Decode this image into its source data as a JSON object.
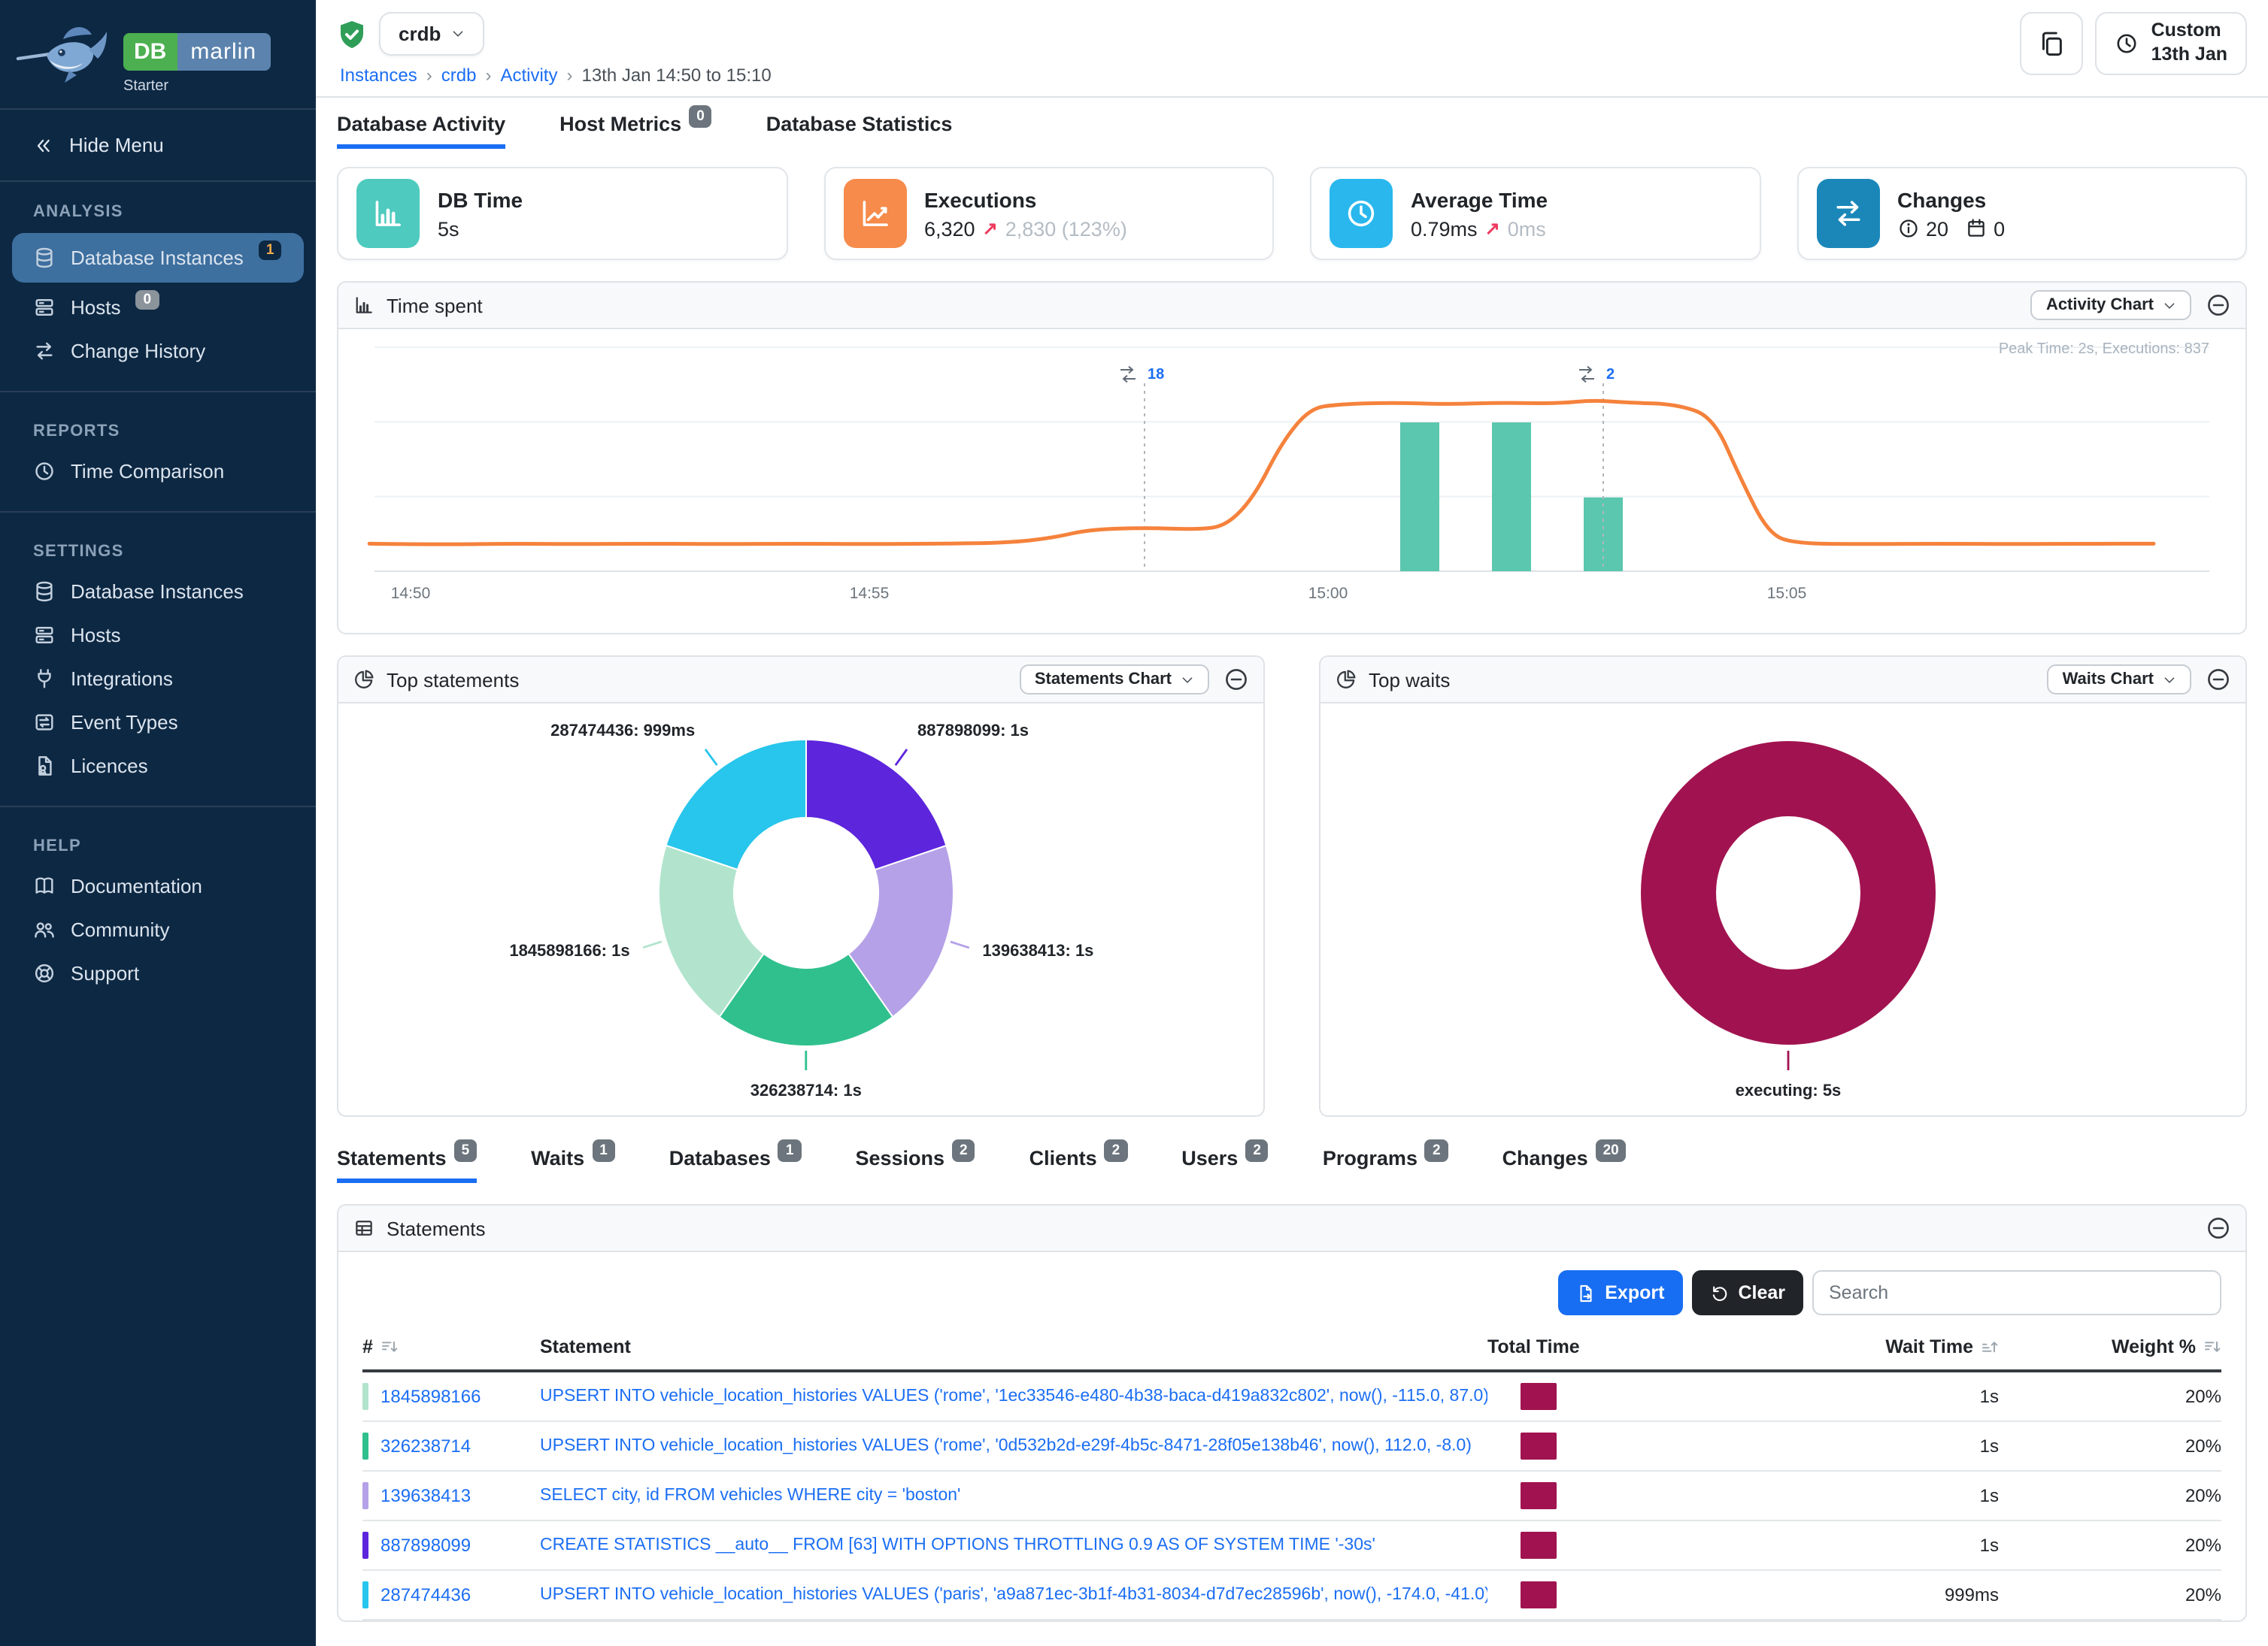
{
  "brand": {
    "db": "DB",
    "marlin": "marlin",
    "edition": "Starter"
  },
  "sidebar": {
    "hide_menu": "Hide Menu",
    "sections": [
      {
        "title": "ANALYSIS",
        "items": [
          {
            "label": "Database Instances",
            "icon": "database",
            "active": true,
            "badge": "1",
            "badge_style": "navy"
          },
          {
            "label": "Hosts",
            "icon": "server",
            "badge": "0",
            "badge_style": "gray"
          },
          {
            "label": "Change History",
            "icon": "swap"
          }
        ]
      },
      {
        "title": "REPORTS",
        "items": [
          {
            "label": "Time Comparison",
            "icon": "clock"
          }
        ]
      },
      {
        "title": "SETTINGS",
        "items": [
          {
            "label": "Database Instances",
            "icon": "database"
          },
          {
            "label": "Hosts",
            "icon": "server"
          },
          {
            "label": "Integrations",
            "icon": "plug"
          },
          {
            "label": "Event Types",
            "icon": "events"
          },
          {
            "label": "Licences",
            "icon": "licence"
          }
        ]
      },
      {
        "title": "HELP",
        "items": [
          {
            "label": "Documentation",
            "icon": "book"
          },
          {
            "label": "Community",
            "icon": "people"
          },
          {
            "label": "Support",
            "icon": "support"
          }
        ]
      }
    ]
  },
  "header": {
    "instance": "crdb",
    "breadcrumb": [
      {
        "label": "Instances",
        "link": true
      },
      {
        "label": "crdb",
        "link": true
      },
      {
        "label": "Activity",
        "link": true
      },
      {
        "label": "13th Jan 14:50 to 15:10",
        "link": false
      }
    ],
    "time_button": {
      "line1": "Custom",
      "line2": "13th Jan"
    }
  },
  "top_tabs": [
    {
      "label": "Database Activity",
      "active": true
    },
    {
      "label": "Host Metrics",
      "badge": "0"
    },
    {
      "label": "Database Statistics"
    }
  ],
  "cards": [
    {
      "title": "DB Time",
      "icon": "chart-bars",
      "color": "#4ecabe",
      "value": "5s"
    },
    {
      "title": "Executions",
      "icon": "chart-line",
      "color": "#f68b4b",
      "value": "6,320",
      "delta_arrow": "↗",
      "delta": "2,830 (123%)"
    },
    {
      "title": "Average Time",
      "icon": "clock",
      "color": "#29b7ee",
      "value": "0.79ms",
      "delta_arrow": "↗",
      "delta": "0ms"
    },
    {
      "title": "Changes",
      "icon": "swap",
      "color": "#1b87b9",
      "counts": [
        {
          "icon": "info",
          "value": "20"
        },
        {
          "icon": "calendar",
          "value": "0"
        }
      ]
    }
  ],
  "panels": {
    "time_spent": {
      "title": "Time spent",
      "button": "Activity Chart"
    },
    "top_statements": {
      "title": "Top statements",
      "button": "Statements Chart"
    },
    "top_waits": {
      "title": "Top waits",
      "button": "Waits Chart"
    }
  },
  "chart_data": [
    {
      "id": "time_spent",
      "type": "line+bar",
      "title": "Time spent",
      "annotation": "Peak Time: 2s, Executions: 837",
      "x_axis": {
        "ticks": [
          "14:50",
          "14:55",
          "15:00",
          "15:05"
        ],
        "tick_minutes": [
          0,
          5,
          10,
          15
        ],
        "range_minutes": [
          -0.5,
          20
        ]
      },
      "y_axis": {
        "unit": "seconds",
        "ylim": [
          0,
          2.7
        ],
        "gridlines": 4
      },
      "line_series": {
        "name": "DB Time",
        "color": "#f5823c",
        "points": [
          [
            -0.45,
            0.33
          ],
          [
            0.3,
            0.32
          ],
          [
            1,
            0.33
          ],
          [
            1.8,
            0.325
          ],
          [
            2.6,
            0.33
          ],
          [
            3.4,
            0.325
          ],
          [
            4.2,
            0.33
          ],
          [
            5,
            0.325
          ],
          [
            5.8,
            0.33
          ],
          [
            6.5,
            0.34
          ],
          [
            7,
            0.4
          ],
          [
            7.4,
            0.5
          ],
          [
            8,
            0.52
          ],
          [
            8.6,
            0.5
          ],
          [
            8.9,
            0.55
          ],
          [
            9.2,
            0.9
          ],
          [
            9.5,
            1.55
          ],
          [
            9.8,
            1.95
          ],
          [
            10.1,
            2.0
          ],
          [
            10.7,
            2.02
          ],
          [
            11.3,
            2.0
          ],
          [
            11.9,
            2.02
          ],
          [
            12.5,
            2.01
          ],
          [
            12.9,
            2.05
          ],
          [
            13.3,
            2.02
          ],
          [
            13.8,
            2.0
          ],
          [
            14.2,
            1.85
          ],
          [
            14.5,
            1.1
          ],
          [
            14.8,
            0.45
          ],
          [
            15.1,
            0.33
          ],
          [
            15.9,
            0.325
          ],
          [
            16.7,
            0.33
          ],
          [
            17.5,
            0.325
          ],
          [
            18.3,
            0.33
          ],
          [
            19,
            0.33
          ]
        ]
      },
      "bar_series": {
        "name": "Executions",
        "color": "#5ac7ae",
        "max": 837,
        "bars": [
          {
            "t": 11,
            "value": 837
          },
          {
            "t": 12,
            "value": 837
          },
          {
            "t": 13,
            "value": 415
          }
        ]
      },
      "change_markers": [
        {
          "t": 8,
          "label": "18"
        },
        {
          "t": 13,
          "label": "2"
        }
      ]
    },
    {
      "id": "top_statements",
      "type": "donut",
      "title": "Top statements",
      "segments": [
        {
          "label": "887898099",
          "value_label": "1s",
          "value": 1.0,
          "color": "#5d25dc"
        },
        {
          "label": "139638413",
          "value_label": "1s",
          "value": 1.0,
          "color": "#b5a1e8"
        },
        {
          "label": "326238714",
          "value_label": "1s",
          "value": 1.0,
          "color": "#2fc08e"
        },
        {
          "label": "1845898166",
          "value_label": "1s",
          "value": 1.0,
          "color": "#b2e4cd"
        },
        {
          "label": "287474436",
          "value_label": "999ms",
          "value": 0.999,
          "color": "#28c5ec"
        }
      ]
    },
    {
      "id": "top_waits",
      "type": "donut",
      "title": "Top waits",
      "segments": [
        {
          "label": "executing",
          "value_label": "5s",
          "value": 5.0,
          "color": "#a11350"
        }
      ]
    }
  ],
  "bottom_tabs": [
    {
      "label": "Statements",
      "badge": "5",
      "active": true
    },
    {
      "label": "Waits",
      "badge": "1"
    },
    {
      "label": "Databases",
      "badge": "1"
    },
    {
      "label": "Sessions",
      "badge": "2"
    },
    {
      "label": "Clients",
      "badge": "2"
    },
    {
      "label": "Users",
      "badge": "2"
    },
    {
      "label": "Programs",
      "badge": "2"
    },
    {
      "label": "Changes",
      "badge": "20"
    }
  ],
  "statements_panel": {
    "title": "Statements",
    "export_label": "Export",
    "clear_label": "Clear",
    "search_placeholder": "Search",
    "columns": [
      {
        "label": "#",
        "sort": "down"
      },
      {
        "label": "Statement"
      },
      {
        "label": "Total Time"
      },
      {
        "label": "Wait Time",
        "sort": "up"
      },
      {
        "label": "Weight %",
        "sort": "down"
      }
    ],
    "rows": [
      {
        "id": "1845898166",
        "chip_color": "#b2e4cd",
        "statement": "UPSERT INTO vehicle_location_histories VALUES ('rome', '1ec33546-e480-4b38-baca-d419a832c802', now(), -115.0, 87.0)",
        "total_time_fraction": 0.2,
        "wait_time": "1s",
        "weight": "20%"
      },
      {
        "id": "326238714",
        "chip_color": "#2fc08e",
        "statement": "UPSERT INTO vehicle_location_histories VALUES ('rome', '0d532b2d-e29f-4b5c-8471-28f05e138b46', now(), 112.0, -8.0)",
        "total_time_fraction": 0.2,
        "wait_time": "1s",
        "weight": "20%"
      },
      {
        "id": "139638413",
        "chip_color": "#b5a1e8",
        "statement": "SELECT city, id FROM vehicles WHERE city = 'boston'",
        "total_time_fraction": 0.2,
        "wait_time": "1s",
        "weight": "20%"
      },
      {
        "id": "887898099",
        "chip_color": "#5d25dc",
        "statement": "CREATE STATISTICS __auto__ FROM [63] WITH OPTIONS THROTTLING 0.9 AS OF SYSTEM TIME '-30s'",
        "total_time_fraction": 0.2,
        "wait_time": "1s",
        "weight": "20%"
      },
      {
        "id": "287474436",
        "chip_color": "#28c5ec",
        "statement": "UPSERT INTO vehicle_location_histories VALUES ('paris', 'a9a871ec-3b1f-4b31-8034-d7d7ec28596b', now(), -174.0, -41.0)",
        "total_time_fraction": 0.2,
        "wait_time": "999ms",
        "weight": "20%"
      }
    ]
  }
}
